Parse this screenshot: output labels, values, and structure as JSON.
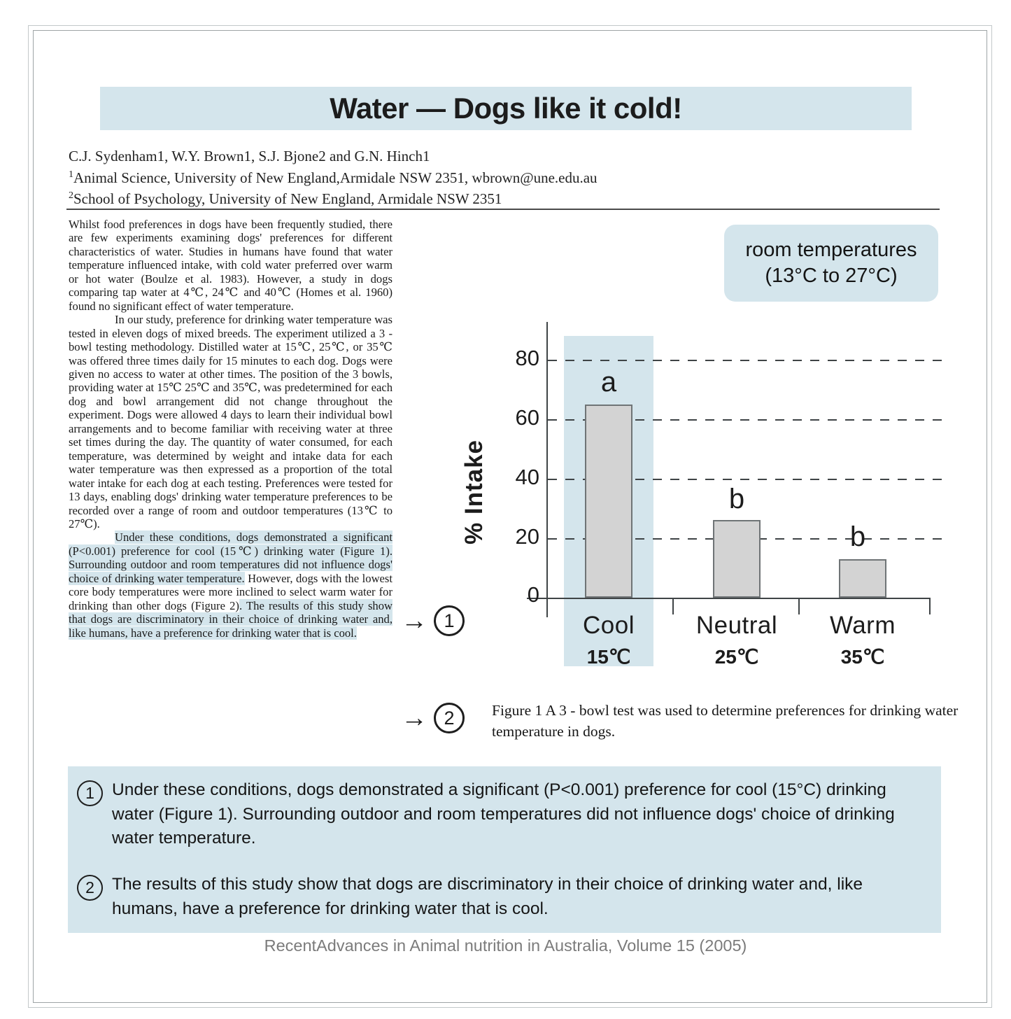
{
  "page": {
    "title": "Water — Dogs like it cold!",
    "footer": "RecentAdvances in Animal nutrition in Australia, Volume 15 (2005)"
  },
  "authors": {
    "line1": "C.J. Sydenham1, W.Y. Brown1, S.J. Bjone2 and G.N. Hinch1",
    "aff1_sup": "1",
    "aff1": "Animal Science, University of New England,Armidale NSW 2351, wbrown@une.edu.au",
    "aff2_sup": "2",
    "aff2": "School of Psychology, University of New England, Armidale NSW 2351"
  },
  "article": {
    "p1": "Whilst food preferences in dogs have been frequently studied, there are few experiments examining dogs' preferences for different characteristics of water. Studies in humans have found that water temperature influenced intake, with cold water preferred over warm or hot water (Boulze et al. 1983). However, a study in dogs comparing tap water at 4℃, 24℃ and 40℃ (Homes et al. 1960) found no significant effect of water temperature.",
    "p2": "In our study, preference for drinking water temperature was tested in eleven dogs of mixed breeds. The experiment utilized a 3 - bowl testing methodology. Distilled water at 15℃, 25℃, or 35℃ was offered three times daily for 15 minutes to each dog. Dogs were given no access to water at other times. The position of the 3 bowls, providing water at 15℃ 25℃ and 35℃, was predetermined for each dog and bowl arrangement did not change throughout the experiment. Dogs were allowed 4 days to learn their individual bowl arrangements and to become familiar with receiving water at three set times during the day. The quantity of water consumed, for each temperature, was determined by weight and intake data for each water temperature was then expressed as a proportion of the total water intake for each dog at each testing. Preferences were tested for 13 days, enabling dogs' drinking water temperature preferences to be recorded over a range of room and outdoor temperatures (13℃ to 27℃).",
    "p3_seg1_highlight": "Under these conditions, dogs demonstrated a significant (P<0.001) preference for cool (15℃) drinking water (Figure 1). Surrounding outdoor and room temperatures did not influence dogs' choice of drinking water temperature.",
    "p3_seg2": " However, dogs with the lowest core body temperatures were more inclined to select warm water for drinking than other dogs (Figure 2)",
    "p3_seg3_highlight": ". The results of this study show that dogs are discriminatory in their choice of drinking water and, like humans, have a preference for drinking water that is cool."
  },
  "margin_markers": {
    "arrow": "→",
    "marker1": "1",
    "marker2": "2"
  },
  "room_box": {
    "line1": "room temperatures",
    "line2": "(13°C to 27°C)"
  },
  "chart_data": {
    "type": "bar",
    "title": "",
    "ylabel": "% Intake",
    "categories": [
      "Cool",
      "Neutral",
      "Warm"
    ],
    "category_temps": [
      "15℃",
      "25℃",
      "35℃"
    ],
    "values": [
      65,
      26,
      13
    ],
    "sig_letters": [
      "a",
      "b",
      "b"
    ],
    "yticks": [
      "0",
      "20",
      "40",
      "60",
      "80"
    ],
    "ylim": [
      0,
      88
    ],
    "grid": "horizontal-dashed",
    "legend": "none",
    "highlighted_category": "Cool",
    "bar_color": "#d3d3d3",
    "highlight_color": "#d4e5ec"
  },
  "figure_caption": "Figure 1  A 3 - bowl test was used to determine preferences for drinking water temperature in dogs.",
  "callouts": [
    {
      "num": "1",
      "text": "Under these conditions, dogs demonstrated a significant (P<0.001) preference for cool (15°C) drinking water (Figure 1). Surrounding outdoor and room temperatures did not influence dogs' choice of drinking water temperature."
    },
    {
      "num": "2",
      "text": "The results of this study show that dogs are discriminatory in their choice of drinking water and, like humans, have a preference for drinking water that is cool."
    }
  ]
}
